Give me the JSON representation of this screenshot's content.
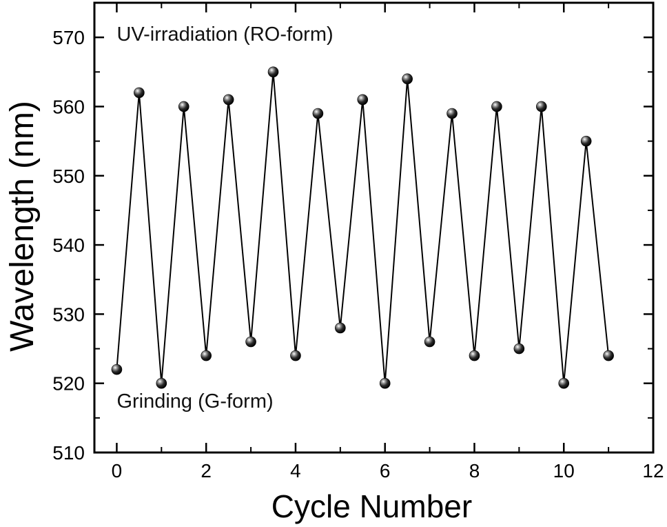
{
  "chart_data": {
    "type": "line",
    "xlabel": "Cycle Number",
    "ylabel": "Wavelength (nm)",
    "xlim": [
      -0.5,
      12
    ],
    "ylim": [
      510,
      575
    ],
    "xticks": [
      0,
      2,
      4,
      6,
      8,
      10,
      12
    ],
    "yticks": [
      510,
      520,
      530,
      540,
      550,
      560,
      570
    ],
    "grid": false,
    "marker": "sphere",
    "series": [
      {
        "x": [
          0,
          0.5,
          1,
          1.5,
          2,
          2.5,
          3,
          3.5,
          4,
          4.5,
          5,
          5.5,
          6,
          6.5,
          7,
          7.5,
          8,
          8.5,
          9,
          9.5,
          10,
          10.5,
          11
        ],
        "y": [
          522,
          562,
          520,
          560,
          524,
          561,
          526,
          565,
          524,
          559,
          528,
          561,
          520,
          564,
          526,
          559,
          524,
          560,
          525,
          560,
          520,
          555,
          524
        ]
      }
    ],
    "annotations": [
      {
        "text": "UV-irradiation (RO-form)",
        "x": 0,
        "y": 569.5
      },
      {
        "text": "Grinding (G-form)",
        "x": 0,
        "y": 516.5
      }
    ]
  }
}
